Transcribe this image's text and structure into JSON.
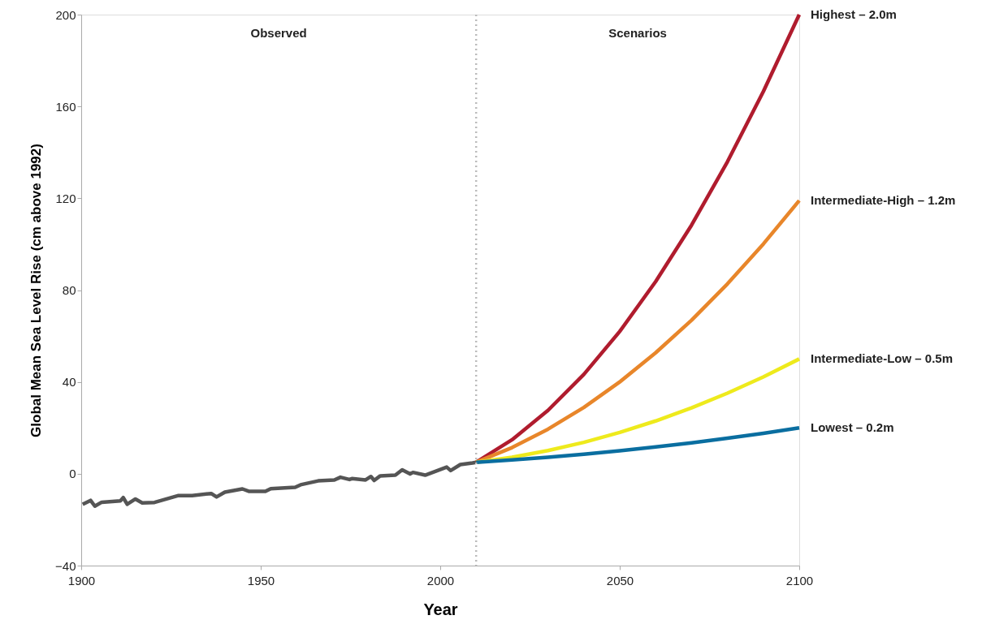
{
  "chart_data": {
    "type": "line",
    "xlabel": "Year",
    "ylabel": "Global Mean Sea Level Rise (cm above 1992)",
    "xlim": [
      1900,
      2100
    ],
    "xticks": [
      1900,
      1950,
      2000,
      2050,
      2100
    ],
    "ylim": [
      -40,
      200
    ],
    "yticks": [
      -40,
      0,
      40,
      80,
      120,
      160,
      200
    ],
    "grid": false,
    "marker": "none",
    "line_style": "solid",
    "ref_lines": [
      {
        "axis": "x",
        "value": 2010,
        "color": "#bbbbbb",
        "line_style": "dotted"
      }
    ],
    "annotations": [
      "Observed",
      "Scenarios"
    ],
    "series": [
      {
        "color": "#555555",
        "x": [
          1900.4,
          1902.6,
          1903.8,
          1905.7,
          1910.9,
          1911.7,
          1912.8,
          1915.1,
          1917,
          1920.4,
          1927.1,
          1930.9,
          1936.2,
          1937.7,
          1940,
          1944.9,
          1946.8,
          1951.3,
          1952.8,
          1959.6,
          1961.1,
          1966,
          1970.5,
          1972.2,
          1974.7,
          1975.4,
          1979.2,
          1980.7,
          1981.6,
          1983.3,
          1987.5,
          1989.4,
          1991.6,
          1992.4,
          1995.8,
          2001.8,
          2002.9,
          2005.6,
          2009,
          2010
        ],
        "values": [
          -13.3,
          -11.6,
          -14.1,
          -12.4,
          -11.8,
          -10.4,
          -13.3,
          -11,
          -12.7,
          -12.5,
          -9.5,
          -9.5,
          -8.6,
          -10.1,
          -8,
          -6.6,
          -7.7,
          -7.7,
          -6.5,
          -5.9,
          -4.8,
          -3.1,
          -2.7,
          -1.5,
          -2.5,
          -2.1,
          -2.7,
          -1.2,
          -2.9,
          -0.9,
          -0.6,
          1.7,
          -0.1,
          0.6,
          -0.6,
          2.9,
          1.4,
          4,
          4.7,
          5
        ]
      },
      {
        "name": "Highest – 2.0m",
        "color": "#b01c2e",
        "x": [
          2010,
          2020,
          2030,
          2040,
          2050,
          2060,
          2070,
          2080,
          2090,
          2100
        ],
        "values": [
          5,
          14.8,
          27.6,
          43.3,
          62,
          83.7,
          108.3,
          135.9,
          166.5,
          200
        ]
      },
      {
        "name": "Intermediate-High – 1.2m",
        "color": "#e8862a",
        "x": [
          2010,
          2020,
          2030,
          2040,
          2050,
          2060,
          2070,
          2080,
          2090,
          2100
        ],
        "values": [
          5,
          11.4,
          19.4,
          28.9,
          40,
          52.7,
          66.9,
          82.7,
          100.1,
          119
        ]
      },
      {
        "name": "Intermediate-Low – 0.5m",
        "color": "#eeea1c",
        "x": [
          2010,
          2020,
          2030,
          2040,
          2050,
          2060,
          2070,
          2080,
          2090,
          2100
        ],
        "values": [
          5,
          7.2,
          10.1,
          13.7,
          18,
          23,
          28.7,
          35.1,
          42.2,
          50
        ]
      },
      {
        "name": "Lowest – 0.2m",
        "color": "#0a6ea0",
        "x": [
          2010,
          2020,
          2030,
          2040,
          2050,
          2060,
          2070,
          2080,
          2090,
          2100
        ],
        "values": [
          5,
          6,
          7.2,
          8.5,
          10,
          11.7,
          13.5,
          15.5,
          17.6,
          20
        ]
      }
    ]
  }
}
